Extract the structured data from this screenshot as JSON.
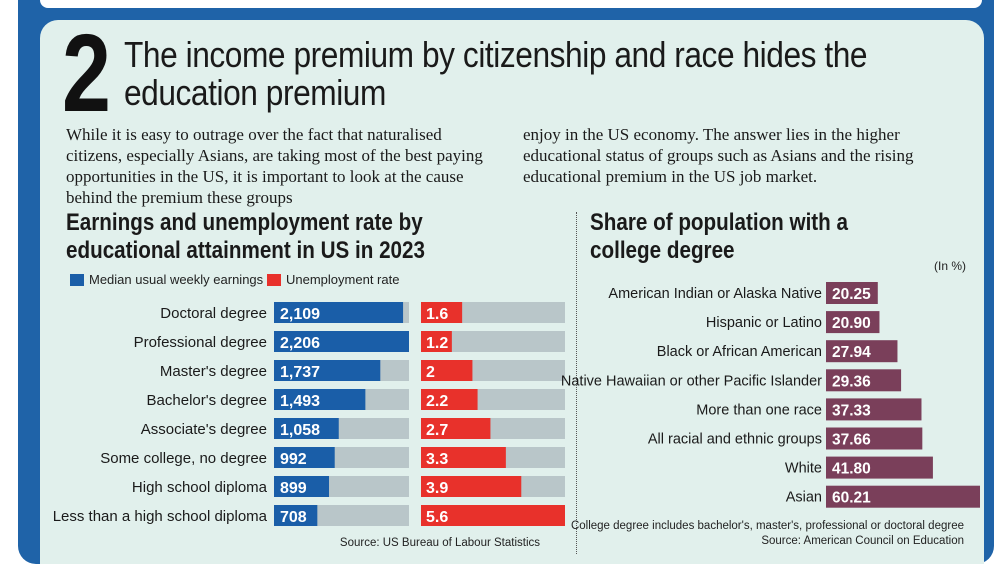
{
  "number": "2",
  "headline": "The income premium by citizenship and race hides the education premium",
  "intro_left": "While it is easy to outrage over the fact that naturalised citizens, especially Asians, are taking most of the best paying opportunities in the US, it is important to look at the cause behind the premium these groups",
  "intro_right": "enjoy in the US economy. The answer lies in the higher educational status of groups such as Asians and the rising educational premium in the US job market.",
  "colors": {
    "earnings": "#1a5ea8",
    "unemployment": "#e8312b",
    "college": "#7a3f5a",
    "track": "#b9c6c9",
    "background": "#e1f0ec",
    "frame": "#1f63a8"
  },
  "chart_data": [
    {
      "type": "bar",
      "title": "Earnings and unemployment rate by educational attainment in US in 2023",
      "categories": [
        "Doctoral degree",
        "Professional degree",
        "Master's degree",
        "Bachelor's degree",
        "Associate's degree",
        "Some college, no degree",
        "High school diploma",
        "Less than a high school diploma"
      ],
      "series": [
        {
          "name": "Median usual weekly earnings",
          "values": [
            2109,
            2206,
            1737,
            1493,
            1058,
            992,
            899,
            708
          ],
          "labels": [
            "2,109",
            "2,206",
            "1,737",
            "1,493",
            "1,058",
            "992",
            "899",
            "708"
          ]
        },
        {
          "name": "Unemployment rate",
          "values": [
            1.6,
            1.2,
            2,
            2.2,
            2.7,
            3.3,
            3.9,
            5.6
          ],
          "labels": [
            "1.6",
            "1.2",
            "2",
            "2.2",
            "2.7",
            "3.3",
            "3.9",
            "5.6"
          ]
        }
      ],
      "source": "Source: US Bureau of Labour Statistics"
    },
    {
      "type": "bar",
      "title": "Share of population with a college degree",
      "unit": "(In %)",
      "categories": [
        "American Indian or Alaska Native",
        "Hispanic or Latino",
        "Black or African American",
        "Native Hawaiian or other Pacific Islander",
        "More than one race",
        "All racial and ethnic groups",
        "White",
        "Asian"
      ],
      "values": [
        20.25,
        20.9,
        27.94,
        29.36,
        37.33,
        37.66,
        41.8,
        60.21
      ],
      "labels": [
        "20.25",
        "20.90",
        "27.94",
        "29.36",
        "37.33",
        "37.66",
        "41.80",
        "60.21"
      ],
      "note": "College degree includes bachelor's, master's, professional or doctoral degree",
      "source": "Source: American Council on Education"
    }
  ]
}
